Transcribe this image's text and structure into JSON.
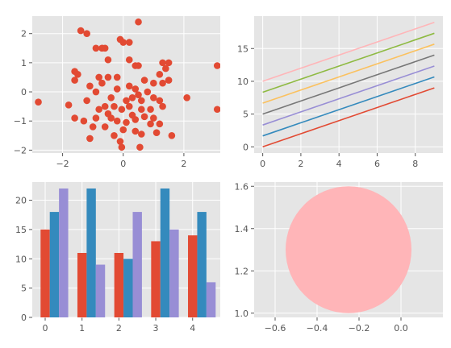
{
  "style": {
    "panel_bg": "#E5E5E5",
    "grid": "#FFFFFF",
    "tick_text": "#555555"
  },
  "chart_data": [
    {
      "type": "scatter",
      "color": "#E24A33",
      "grid": true,
      "xlim": [
        -3,
        3.2
      ],
      "ylim": [
        -2.1,
        2.6
      ],
      "xticks": [
        -2,
        0,
        2
      ],
      "yticks": [
        -2,
        -1,
        0,
        1,
        2
      ],
      "points": [
        [
          0.5,
          2.4
        ],
        [
          -1.4,
          2.1
        ],
        [
          -1.2,
          2.0
        ],
        [
          -0.1,
          1.8
        ],
        [
          0.0,
          1.7
        ],
        [
          0.2,
          1.7
        ],
        [
          -0.7,
          1.5
        ],
        [
          -0.6,
          1.5
        ],
        [
          -0.9,
          1.5
        ],
        [
          -0.5,
          1.1
        ],
        [
          0.2,
          1.1
        ],
        [
          0.4,
          0.9
        ],
        [
          0.5,
          0.9
        ],
        [
          1.3,
          1.0
        ],
        [
          1.5,
          1.0
        ],
        [
          1.4,
          0.8
        ],
        [
          3.1,
          0.9
        ],
        [
          -1.6,
          0.7
        ],
        [
          -1.5,
          0.6
        ],
        [
          -0.8,
          0.5
        ],
        [
          -0.5,
          0.5
        ],
        [
          1.2,
          0.6
        ],
        [
          -1.6,
          0.4
        ],
        [
          -0.2,
          0.5
        ],
        [
          0.7,
          0.4
        ],
        [
          1.0,
          0.3
        ],
        [
          1.3,
          0.3
        ],
        [
          1.5,
          0.4
        ],
        [
          -0.7,
          0.3
        ],
        [
          -1.1,
          0.2
        ],
        [
          0.2,
          0.2
        ],
        [
          0.4,
          0.1
        ],
        [
          0.8,
          0.0
        ],
        [
          -0.9,
          0.0
        ],
        [
          -0.2,
          0.1
        ],
        [
          0.5,
          -0.1
        ],
        [
          1.0,
          -0.2
        ],
        [
          2.1,
          -0.2
        ],
        [
          -0.4,
          -0.2
        ],
        [
          0.1,
          -0.3
        ],
        [
          0.6,
          -0.3
        ],
        [
          1.2,
          -0.3
        ],
        [
          -1.2,
          -0.3
        ],
        [
          -2.8,
          -0.35
        ],
        [
          -1.8,
          -0.45
        ],
        [
          -0.6,
          -0.5
        ],
        [
          -0.3,
          -0.5
        ],
        [
          0.2,
          -0.5
        ],
        [
          0.6,
          -0.6
        ],
        [
          0.9,
          -0.6
        ],
        [
          1.3,
          -0.5
        ],
        [
          3.1,
          -0.6
        ],
        [
          -0.8,
          -0.6
        ],
        [
          -0.5,
          -0.75
        ],
        [
          0.3,
          -0.8
        ],
        [
          0.7,
          -0.85
        ],
        [
          1.0,
          -0.9
        ],
        [
          -0.9,
          -0.9
        ],
        [
          -0.4,
          -0.9
        ],
        [
          0.4,
          -0.95
        ],
        [
          -1.6,
          -0.9
        ],
        [
          -0.2,
          -1.0
        ],
        [
          0.1,
          -1.05
        ],
        [
          0.9,
          -1.1
        ],
        [
          1.2,
          -1.1
        ],
        [
          -1.0,
          -1.2
        ],
        [
          -0.6,
          -1.2
        ],
        [
          0.0,
          -1.3
        ],
        [
          0.4,
          -1.35
        ],
        [
          1.1,
          -1.4
        ],
        [
          0.6,
          -1.45
        ],
        [
          -0.3,
          -1.5
        ],
        [
          1.6,
          -1.5
        ],
        [
          -1.1,
          -1.6
        ],
        [
          -0.1,
          -1.7
        ],
        [
          0.55,
          -1.9
        ],
        [
          -0.05,
          -1.9
        ],
        [
          -1.3,
          -1.0
        ],
        [
          0.3,
          -0.2
        ],
        [
          -0.05,
          -0.6
        ]
      ]
    },
    {
      "type": "line",
      "grid": true,
      "xlim": [
        -0.45,
        9.45
      ],
      "ylim": [
        -0.95,
        19.95
      ],
      "xticks": [
        0,
        2,
        4,
        6,
        8
      ],
      "yticks": [
        0,
        5,
        10,
        15
      ],
      "x": [
        0,
        1,
        2,
        3,
        4,
        5,
        6,
        7,
        8,
        9
      ],
      "series": [
        {
          "color": "#E24A33",
          "values": [
            0,
            1,
            2,
            3,
            4,
            5,
            6,
            7,
            8,
            9
          ]
        },
        {
          "color": "#348ABD",
          "values": [
            1.67,
            2.67,
            3.67,
            4.67,
            5.67,
            6.67,
            7.67,
            8.67,
            9.67,
            10.67
          ]
        },
        {
          "color": "#988ED5",
          "values": [
            3.33,
            4.33,
            5.33,
            6.33,
            7.33,
            8.33,
            9.33,
            10.33,
            11.33,
            12.33
          ]
        },
        {
          "color": "#777777",
          "values": [
            5,
            6,
            7,
            8,
            9,
            10,
            11,
            12,
            13,
            14
          ]
        },
        {
          "color": "#FBC15E",
          "values": [
            6.67,
            7.67,
            8.67,
            9.67,
            10.67,
            11.67,
            12.67,
            13.67,
            14.67,
            15.67
          ]
        },
        {
          "color": "#8EBA42",
          "values": [
            8.33,
            9.33,
            10.33,
            11.33,
            12.33,
            13.33,
            14.33,
            15.33,
            16.33,
            17.33
          ]
        },
        {
          "color": "#FFB5B8",
          "values": [
            10,
            11,
            12,
            13,
            14,
            15,
            16,
            17,
            18,
            19
          ]
        }
      ]
    },
    {
      "type": "bar",
      "grid": true,
      "xlim": [
        -0.35,
        4.75
      ],
      "ylim": [
        0,
        23.1
      ],
      "xticks": [
        0,
        1,
        2,
        3,
        4
      ],
      "yticks": [
        0,
        5,
        10,
        15,
        20
      ],
      "categories": [
        "0",
        "1",
        "2",
        "3",
        "4"
      ],
      "bar_width": 0.25,
      "series": [
        {
          "color": "#E24A33",
          "values": [
            15,
            11,
            11,
            13,
            14
          ]
        },
        {
          "color": "#348ABD",
          "values": [
            18,
            22,
            10,
            22,
            18
          ]
        },
        {
          "color": "#988ED5",
          "values": [
            22,
            9,
            18,
            15,
            6
          ]
        }
      ]
    },
    {
      "type": "scatter",
      "shape": "circle",
      "grid": true,
      "xlim": [
        -0.7,
        0.2
      ],
      "ylim": [
        0.98,
        1.62
      ],
      "xticks": [
        -0.6,
        -0.4,
        -0.2,
        0.0
      ],
      "yticks": [
        1.0,
        1.2,
        1.4,
        1.6
      ],
      "circle": {
        "center": [
          -0.25,
          1.3
        ],
        "radius": 0.3,
        "color": "#FFB5B8"
      }
    }
  ]
}
